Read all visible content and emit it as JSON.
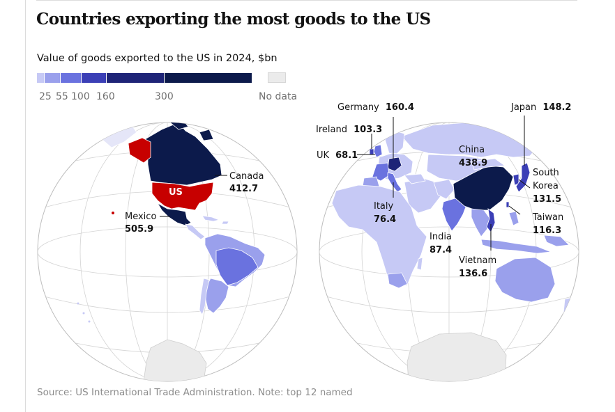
{
  "title": "Countries exporting the most goods to the US",
  "subtitle": "Value of goods exported to the US in 2024, $bn",
  "legend": {
    "ticks": [
      "25",
      "55",
      "100",
      "160",
      "300"
    ],
    "no_data": "No data",
    "colors": [
      "#c6c9f5",
      "#9aa0ec",
      "#6a72df",
      "#3b3fb6",
      "#1e2477",
      "#0c1a4b"
    ],
    "no_data_color": "#ebebeb"
  },
  "colors": {
    "us": "#c70000",
    "graticule": "#cfcfcf",
    "globe_outline": "#bdbdbd",
    "antarctica": "#ebebeb"
  },
  "labels": {
    "us": "US",
    "canada": {
      "name": "Canada",
      "value": "412.7"
    },
    "mexico": {
      "name": "Mexico",
      "value": "505.9"
    },
    "germany": {
      "name": "Germany",
      "value": "160.4"
    },
    "ireland": {
      "name": "Ireland",
      "value": "103.3"
    },
    "uk": {
      "name": "UK",
      "value": "68.1"
    },
    "italy": {
      "name": "Italy",
      "value": "76.4"
    },
    "china": {
      "name": "China",
      "value": "438.9"
    },
    "japan": {
      "name": "Japan",
      "value": "148.2"
    },
    "south_korea": {
      "name_line1": "South",
      "name_line2": "Korea",
      "value": "131.5"
    },
    "taiwan": {
      "name": "Taiwan",
      "value": "116.3"
    },
    "india": {
      "name": "India",
      "value": "87.4"
    },
    "vietnam": {
      "name": "Vietnam",
      "value": "136.6"
    }
  },
  "source": "Source: US International Trade Administration. Note: top 12 named"
}
